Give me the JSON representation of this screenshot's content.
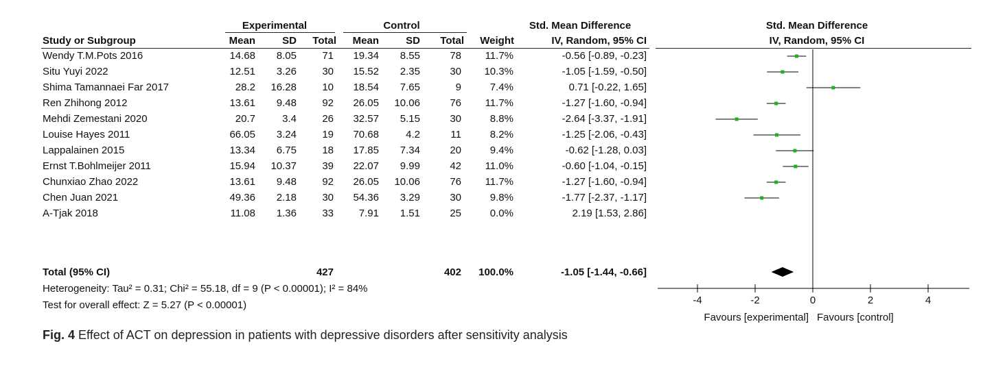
{
  "header": {
    "experimental": "Experimental",
    "control": "Control",
    "smd": "Std. Mean Difference",
    "smd_plot": "Std. Mean Difference",
    "study": "Study or Subgroup",
    "mean": "Mean",
    "sd": "SD",
    "total": "Total",
    "weight": "Weight",
    "ci": "IV, Random, 95% CI",
    "ci_plot": "IV, Random, 95% CI"
  },
  "rows": [
    {
      "study": "Wendy T.M.Pots 2016",
      "e_mean": "14.68",
      "e_sd": "8.05",
      "e_total": "71",
      "c_mean": "19.34",
      "c_sd": "8.55",
      "c_total": "78",
      "weight": "11.7%",
      "ci": "-0.56 [-0.89, -0.23]"
    },
    {
      "study": "Situ Yuyi 2022",
      "e_mean": "12.51",
      "e_sd": "3.26",
      "e_total": "30",
      "c_mean": "15.52",
      "c_sd": "2.35",
      "c_total": "30",
      "weight": "10.3%",
      "ci": "-1.05 [-1.59, -0.50]"
    },
    {
      "study": "Shima Tamannaei Far 2017",
      "e_mean": "28.2",
      "e_sd": "16.28",
      "e_total": "10",
      "c_mean": "18.54",
      "c_sd": "7.65",
      "c_total": "9",
      "weight": "7.4%",
      "ci": "0.71 [-0.22, 1.65]"
    },
    {
      "study": "Ren Zhihong 2012",
      "e_mean": "13.61",
      "e_sd": "9.48",
      "e_total": "92",
      "c_mean": "26.05",
      "c_sd": "10.06",
      "c_total": "76",
      "weight": "11.7%",
      "ci": "-1.27 [-1.60, -0.94]"
    },
    {
      "study": "Mehdi Zemestani 2020",
      "e_mean": "20.7",
      "e_sd": "3.4",
      "e_total": "26",
      "c_mean": "32.57",
      "c_sd": "5.15",
      "c_total": "30",
      "weight": "8.8%",
      "ci": "-2.64 [-3.37, -1.91]"
    },
    {
      "study": "Louise Hayes 2011",
      "e_mean": "66.05",
      "e_sd": "3.24",
      "e_total": "19",
      "c_mean": "70.68",
      "c_sd": "4.2",
      "c_total": "11",
      "weight": "8.2%",
      "ci": "-1.25 [-2.06, -0.43]"
    },
    {
      "study": "Lappalainen 2015",
      "e_mean": "13.34",
      "e_sd": "6.75",
      "e_total": "18",
      "c_mean": "17.85",
      "c_sd": "7.34",
      "c_total": "20",
      "weight": "9.4%",
      "ci": "-0.62 [-1.28, 0.03]"
    },
    {
      "study": "Ernst T.Bohlmeijer 2011",
      "e_mean": "15.94",
      "e_sd": "10.37",
      "e_total": "39",
      "c_mean": "22.07",
      "c_sd": "9.99",
      "c_total": "42",
      "weight": "11.0%",
      "ci": "-0.60 [-1.04, -0.15]"
    },
    {
      "study": "Chunxiao Zhao 2022",
      "e_mean": "13.61",
      "e_sd": "9.48",
      "e_total": "92",
      "c_mean": "26.05",
      "c_sd": "10.06",
      "c_total": "76",
      "weight": "11.7%",
      "ci": "-1.27 [-1.60, -0.94]"
    },
    {
      "study": "Chen Juan 2021",
      "e_mean": "49.36",
      "e_sd": "2.18",
      "e_total": "30",
      "c_mean": "54.36",
      "c_sd": "3.29",
      "c_total": "30",
      "weight": "9.8%",
      "ci": "-1.77 [-2.37, -1.17]"
    },
    {
      "study": "A-Tjak 2018",
      "e_mean": "11.08",
      "e_sd": "1.36",
      "e_total": "33",
      "c_mean": "7.91",
      "c_sd": "1.51",
      "c_total": "25",
      "weight": "0.0%",
      "ci": "2.19 [1.53, 2.86]"
    }
  ],
  "total_row": {
    "label": "Total (95% CI)",
    "e_total": "427",
    "c_total": "402",
    "weight": "100.0%",
    "ci": "-1.05 [-1.44, -0.66]"
  },
  "footer": {
    "heterogeneity": "Heterogeneity: Tau² = 0.31; Chi² = 55.18, df = 9 (P < 0.00001); I² = 84%",
    "overall": "Test for overall effect: Z = 5.27 (P < 0.00001)"
  },
  "axis_notes": {
    "left": "Favours [experimental]",
    "right": "Favours [control]"
  },
  "caption": {
    "fig": "Fig. 4",
    "text": "Effect of ACT on depression in patients with depressive disorders after sensitivity analysis"
  },
  "colors": {
    "point": "#22b022",
    "line": "#000000",
    "diamond": "#000000"
  },
  "chart_data": {
    "type": "scatter",
    "subtype": "forest",
    "xlim": [
      -4,
      4
    ],
    "xticks": [
      "-4",
      "-2",
      "0",
      "2",
      "4"
    ],
    "studies": [
      {
        "name": "Wendy T.M.Pots 2016",
        "est": -0.56,
        "lo": -0.89,
        "hi": -0.23
      },
      {
        "name": "Situ Yuyi 2022",
        "est": -1.05,
        "lo": -1.59,
        "hi": -0.5
      },
      {
        "name": "Shima Tamannaei Far 2017",
        "est": 0.71,
        "lo": -0.22,
        "hi": 1.65
      },
      {
        "name": "Ren Zhihong 2012",
        "est": -1.27,
        "lo": -1.6,
        "hi": -0.94
      },
      {
        "name": "Mehdi Zemestani 2020",
        "est": -2.64,
        "lo": -3.37,
        "hi": -1.91
      },
      {
        "name": "Louise Hayes 2011",
        "est": -1.25,
        "lo": -2.06,
        "hi": -0.43
      },
      {
        "name": "Lappalainen 2015",
        "est": -0.62,
        "lo": -1.28,
        "hi": 0.03
      },
      {
        "name": "Ernst T.Bohlmeijer 2011",
        "est": -0.6,
        "lo": -1.04,
        "hi": -0.15
      },
      {
        "name": "Chunxiao Zhao 2022",
        "est": -1.27,
        "lo": -1.6,
        "hi": -0.94
      },
      {
        "name": "Chen Juan 2021",
        "est": -1.77,
        "lo": -2.37,
        "hi": -1.17
      }
    ],
    "pooled": {
      "est": -1.05,
      "lo": -1.44,
      "hi": -0.66
    }
  }
}
